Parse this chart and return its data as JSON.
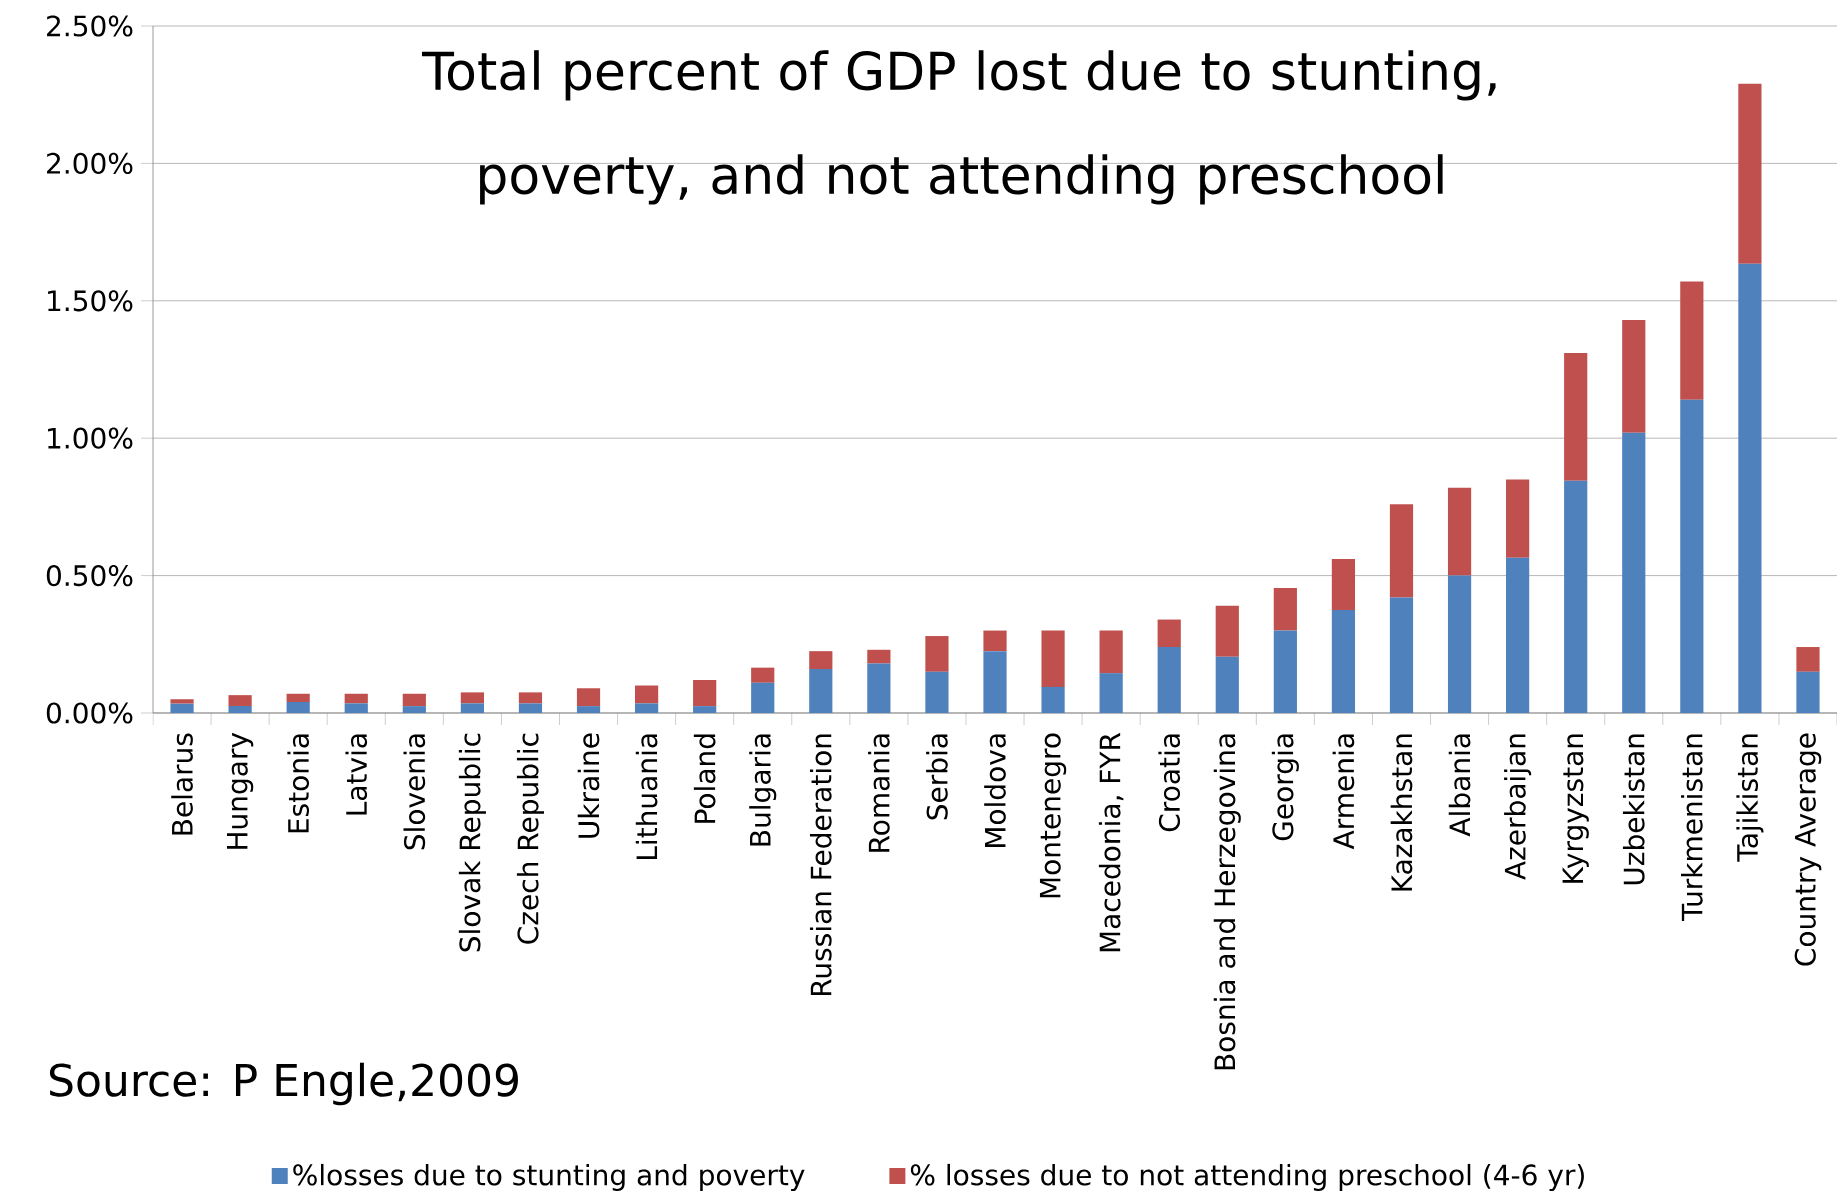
{
  "chart_data": {
    "type": "bar",
    "stacked": true,
    "title": "Total percent of GDP lost due to stunting, poverty, and not attending preschool",
    "categories": [
      "Belarus",
      "Hungary",
      "Estonia",
      "Latvia",
      "Slovenia",
      "Slovak Republic",
      "Czech Republic",
      "Ukraine",
      "Lithuania",
      "Poland",
      "Bulgaria",
      "Russian Federation",
      "Romania",
      "Serbia",
      "Moldova",
      "Montenegro",
      "Macedonia, FYR",
      "Croatia",
      "Bosnia and Herzegovina",
      "Georgia",
      "Armenia",
      "Kazakhstan",
      "Albania",
      "Azerbaijan",
      "Kyrgyzstan",
      "Uzbekistan",
      "Turkmenistan",
      "Tajikistan",
      "Country Average"
    ],
    "series": [
      {
        "name": "%losses due to stunting and poverty",
        "color": "#4f81bd",
        "values": [
          0.034,
          0.025,
          0.04,
          0.035,
          0.025,
          0.035,
          0.035,
          0.025,
          0.035,
          0.025,
          0.11,
          0.16,
          0.18,
          0.15,
          0.225,
          0.095,
          0.145,
          0.24,
          0.205,
          0.3,
          0.375,
          0.42,
          0.5,
          0.565,
          0.845,
          1.02,
          1.14,
          1.635,
          0.15
        ]
      },
      {
        "name": "% losses due to not attending preschool (4-6 yr)",
        "color": "#c0504d",
        "values": [
          0.016,
          0.04,
          0.03,
          0.035,
          0.045,
          0.04,
          0.04,
          0.065,
          0.065,
          0.095,
          0.055,
          0.065,
          0.05,
          0.13,
          0.075,
          0.205,
          0.155,
          0.1,
          0.185,
          0.155,
          0.185,
          0.34,
          0.32,
          0.285,
          0.465,
          0.41,
          0.43,
          0.655,
          0.09
        ]
      }
    ],
    "ylim": [
      0,
      2.5
    ],
    "yticks": [
      {
        "value": 0,
        "label": "0.00%"
      },
      {
        "value": 0.5,
        "label": "0.50%"
      },
      {
        "value": 1,
        "label": "1.00%"
      },
      {
        "value": 1.5,
        "label": "1.50%"
      },
      {
        "value": 2,
        "label": "2.00%"
      },
      {
        "value": 2.5,
        "label": "2.50%"
      }
    ],
    "grid": "y",
    "legend": "bottom",
    "annotations": [
      "Source: P Engle,2009"
    ]
  }
}
